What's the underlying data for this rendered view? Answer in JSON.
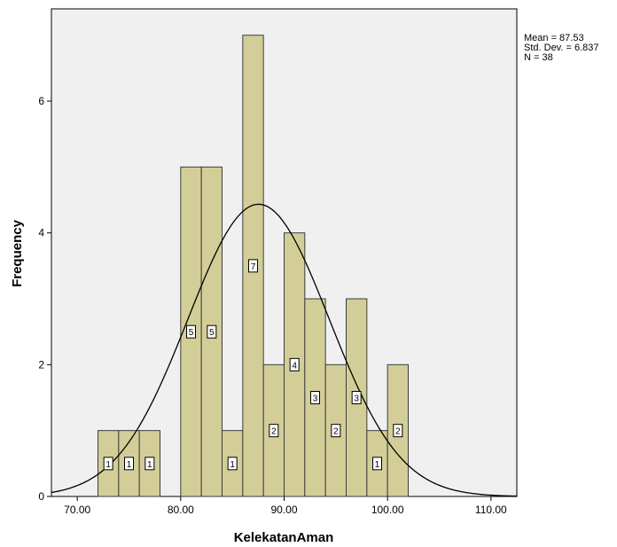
{
  "chart_data": {
    "type": "bar",
    "subtype": "histogram",
    "xlabel": "KelekatanAman",
    "ylabel": "Frequency",
    "xlim": [
      67.5,
      112.5
    ],
    "ylim": [
      0,
      7.4
    ],
    "x_ticks": [
      70,
      80,
      90,
      100,
      110
    ],
    "x_tick_labels": [
      "70.00",
      "80.00",
      "90.00",
      "100.00",
      "110.00"
    ],
    "y_ticks": [
      0,
      2,
      4,
      6
    ],
    "y_tick_labels": [
      "0",
      "2",
      "4",
      "6"
    ],
    "bin_width": 2,
    "bins": [
      {
        "start": 72,
        "end": 74,
        "count": 1
      },
      {
        "start": 74,
        "end": 76,
        "count": 1
      },
      {
        "start": 76,
        "end": 78,
        "count": 1
      },
      {
        "start": 80,
        "end": 82,
        "count": 5
      },
      {
        "start": 82,
        "end": 84,
        "count": 5
      },
      {
        "start": 84,
        "end": 86,
        "count": 1
      },
      {
        "start": 86,
        "end": 88,
        "count": 7
      },
      {
        "start": 88,
        "end": 90,
        "count": 2
      },
      {
        "start": 90,
        "end": 92,
        "count": 4
      },
      {
        "start": 92,
        "end": 94,
        "count": 3
      },
      {
        "start": 94,
        "end": 96,
        "count": 2
      },
      {
        "start": 96,
        "end": 98,
        "count": 3
      },
      {
        "start": 98,
        "end": 100,
        "count": 1
      },
      {
        "start": 100,
        "end": 102,
        "count": 2
      }
    ],
    "normal_curve": {
      "mean": 87.53,
      "sd": 6.837,
      "n": 38
    },
    "stats_text": [
      "Mean = 87.53",
      "Std. Dev. = 6.837",
      "N = 38"
    ],
    "grid": false,
    "colors": {
      "plot_background": "#f0f0f0",
      "bar_fill": "#d3ce97",
      "bar_stroke": "#3c3c3c",
      "curve": "#000000"
    }
  }
}
